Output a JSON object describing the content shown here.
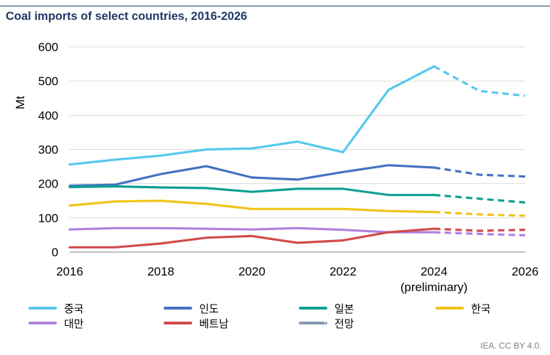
{
  "chart_data": {
    "type": "line",
    "title": "Coal imports of select countries, 2016-2026",
    "ylabel": "Mt",
    "xlabel": "",
    "ylim": [
      0,
      600
    ],
    "yticks": [
      0,
      100,
      200,
      300,
      400,
      500,
      600
    ],
    "xlim": [
      2016,
      2026
    ],
    "x": [
      2016,
      2017,
      2018,
      2019,
      2020,
      2021,
      2022,
      2023,
      2024,
      2025,
      2026
    ],
    "xticks": [
      {
        "value": 2016,
        "label": "2016"
      },
      {
        "value": 2018,
        "label": "2018"
      },
      {
        "value": 2020,
        "label": "2020"
      },
      {
        "value": 2022,
        "label": "2022"
      },
      {
        "value": 2024,
        "label": "2024"
      },
      {
        "value": 2026,
        "label": "2026"
      }
    ],
    "xtick_sublabel": {
      "value": 2024,
      "label": "(preliminary)"
    },
    "forecast_start": 2024,
    "grid": "horizontal",
    "series": [
      {
        "name": "중국",
        "color": "#56c8ef",
        "values": [
          256,
          270,
          282,
          300,
          303,
          323,
          292,
          474,
          543,
          471,
          457
        ]
      },
      {
        "name": "인도",
        "color": "#4472c4",
        "values": [
          194,
          197,
          228,
          251,
          218,
          212,
          234,
          254,
          247,
          226,
          221
        ]
      },
      {
        "name": "일본",
        "color": "#10a092",
        "values": [
          190,
          192,
          189,
          187,
          176,
          185,
          185,
          167,
          167,
          156,
          145
        ]
      },
      {
        "name": "한국",
        "color": "#f2c418",
        "values": [
          136,
          148,
          150,
          141,
          126,
          126,
          126,
          120,
          117,
          110,
          106
        ]
      },
      {
        "name": "대만",
        "color": "#b181e0",
        "values": [
          66,
          70,
          70,
          68,
          66,
          70,
          65,
          58,
          58,
          53,
          49
        ]
      },
      {
        "name": "베트남",
        "color": "#d14b4b",
        "values": [
          14,
          14,
          25,
          42,
          47,
          27,
          34,
          58,
          68,
          62,
          65
        ]
      }
    ],
    "forecast_legend": {
      "name": "전망",
      "color": "#8497b0"
    }
  },
  "credit": "IEA. CC BY 4.0."
}
